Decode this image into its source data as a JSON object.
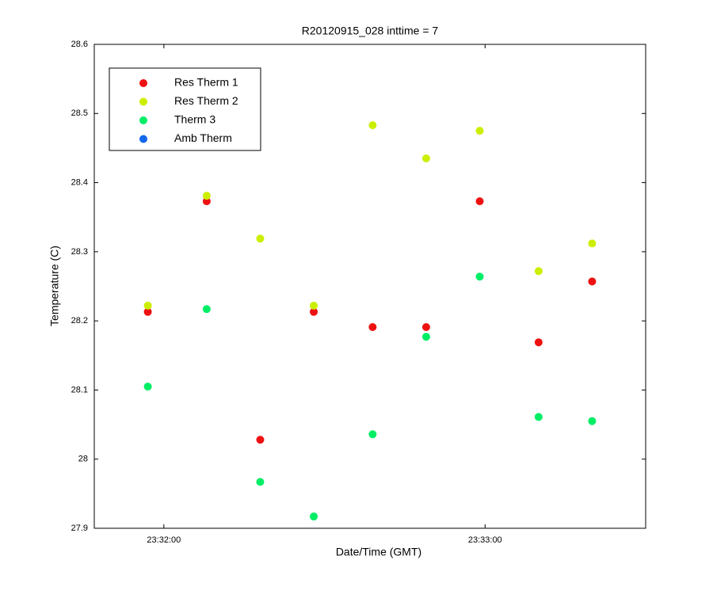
{
  "chart_data": {
    "type": "scatter",
    "title": "R20120915_028 inttime = 7",
    "x_label": "Date/Time (GMT)",
    "y_label": "Temperature (C)",
    "x": [
      "23:31:57",
      "23:32:08",
      "23:32:18",
      "23:32:28",
      "23:32:39",
      "23:32:49",
      "23:32:59",
      "23:33:10",
      "23:33:20"
    ],
    "xlim": [
      "23:31:47",
      "23:33:30"
    ],
    "xticks": [
      "23:32:00",
      "23:33:00"
    ],
    "ylim": [
      27.9,
      28.6
    ],
    "yticks": [
      27.9,
      28,
      28.1,
      28.2,
      28.3,
      28.4,
      28.5,
      28.6
    ],
    "legend": "upper left",
    "series": [
      {
        "name": "Res Therm 1",
        "color": "#ee1111",
        "values": [
          28.213,
          28.373,
          28.028,
          28.213,
          28.191,
          28.191,
          28.373,
          28.169,
          28.257
        ]
      },
      {
        "name": "Res Therm 2",
        "color": "#ccee00",
        "values": [
          28.222,
          28.381,
          28.319,
          28.222,
          28.483,
          28.435,
          28.475,
          28.272,
          28.312
        ]
      },
      {
        "name": "Therm 3",
        "color": "#00ee66",
        "values": [
          28.105,
          28.217,
          27.967,
          27.917,
          28.036,
          28.177,
          28.264,
          28.061,
          28.055
        ]
      },
      {
        "name": "Amb Therm",
        "color": "#1166ee",
        "values": [
          null,
          null,
          null,
          null,
          null,
          null,
          null,
          null,
          null
        ]
      }
    ]
  }
}
